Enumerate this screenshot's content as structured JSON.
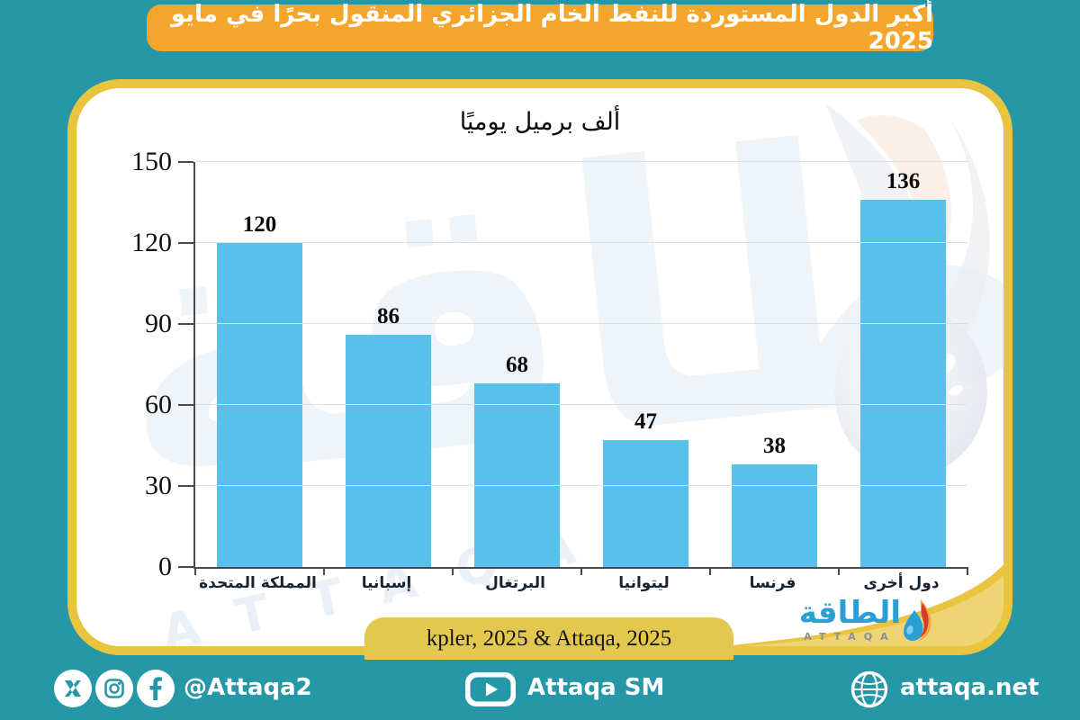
{
  "banner": {
    "title": "أكبر الدول المستوردة للنفط الخام الجزائري المنقول بحرًا في مايو 2025"
  },
  "chart_data": {
    "type": "bar",
    "title": "ألف برميل يوميًا",
    "categories": [
      "المملكة المتحدة",
      "إسبانيا",
      "البرتغال",
      "ليتوانيا",
      "فرنسا",
      "دول أخرى"
    ],
    "values": [
      120,
      86,
      68,
      47,
      38,
      136
    ],
    "xlabel": "",
    "ylabel": "",
    "ylim": [
      0,
      150
    ],
    "y_ticks": [
      0,
      30,
      60,
      90,
      120,
      150
    ],
    "grid": true,
    "legend": false,
    "bar_color": "#58c1eb"
  },
  "source": {
    "label": "kpler, 2025 & Attaqa, 2025"
  },
  "logo": {
    "arabic": "الطاقة",
    "latin": "ATTAQA"
  },
  "watermark": {
    "arabic": "الطاقة",
    "latin": "ATTAQA"
  },
  "footer": {
    "handle": "@Attaqa2",
    "youtube_label": "Attaqa SM",
    "website": "attaqa.net"
  },
  "colors": {
    "background_teal": "#2697a6",
    "banner_orange": "#f4a52b",
    "card_border_gold": "#e9c43f",
    "source_pill_gold": "#e2c84e",
    "bar_blue": "#58c1eb",
    "logo_blue": "#2b9fd3"
  }
}
